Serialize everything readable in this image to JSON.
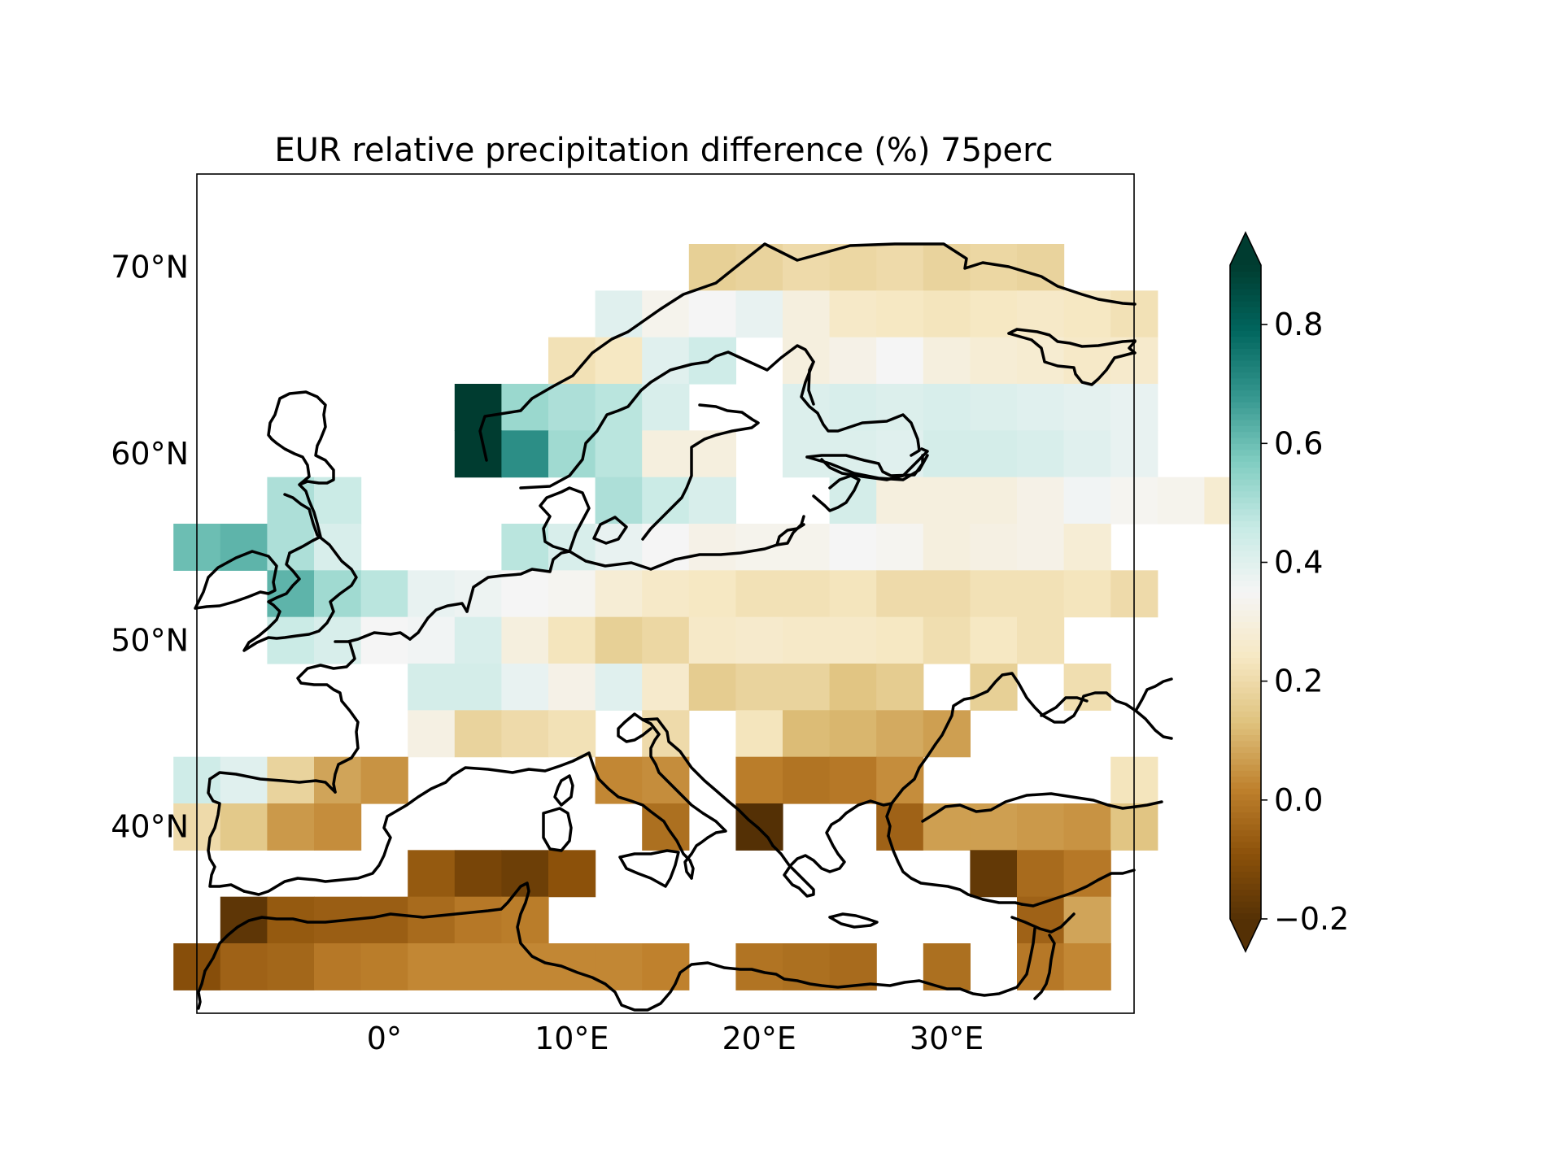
{
  "chart_data": {
    "type": "heatmap",
    "title": "EUR relative precipitation difference (%) 75perc",
    "lon_range": [
      -10,
      40
    ],
    "lat_range": [
      30,
      75
    ],
    "cell_size_deg": 2.5,
    "x_ticks": [
      {
        "value": 0,
        "label": "0°"
      },
      {
        "value": 10,
        "label": "10°E"
      },
      {
        "value": 20,
        "label": "20°E"
      },
      {
        "value": 30,
        "label": "30°E"
      }
    ],
    "y_ticks": [
      {
        "value": 40,
        "label": "40°N"
      },
      {
        "value": 50,
        "label": "50°N"
      },
      {
        "value": 60,
        "label": "60°N"
      },
      {
        "value": 70,
        "label": "70°N"
      }
    ],
    "colorbar": {
      "min": -0.2,
      "max": 0.9,
      "extend": "both",
      "ticks": [
        {
          "value": -0.2,
          "label": "−0.2"
        },
        {
          "value": 0.0,
          "label": "0.0"
        },
        {
          "value": 0.2,
          "label": "0.2"
        },
        {
          "value": 0.4,
          "label": "0.4"
        },
        {
          "value": 0.6,
          "label": "0.6"
        },
        {
          "value": 0.8,
          "label": "0.8"
        }
      ],
      "colormap": "BrBG",
      "under_color": "#543005",
      "over_color": "#003c30"
    },
    "rows": [
      {
        "lat": 70.0,
        "lon_start": 17.5,
        "values": [
          0.17,
          0.18,
          0.2,
          0.19,
          0.2,
          0.18,
          0.19,
          0.18
        ]
      },
      {
        "lat": 67.5,
        "lon_start": 12.5,
        "values": [
          0.4,
          0.33,
          0.35,
          0.38,
          0.3,
          0.25,
          0.24,
          0.23,
          0.24,
          0.25,
          0.24,
          0.22
        ]
      },
      {
        "lat": 65.0,
        "lon_start": 10.0,
        "values": [
          0.22,
          0.24,
          0.4,
          0.44,
          null,
          0.3,
          0.32,
          0.35,
          0.3,
          0.28,
          0.27,
          0.25,
          0.26
        ]
      },
      {
        "lat": 62.5,
        "lon_start": 5.0,
        "values": [
          0.9,
          0.53,
          0.5,
          0.48,
          0.42,
          null,
          null,
          0.41,
          0.42,
          0.41,
          0.42,
          0.41,
          0.4,
          0.39,
          0.38
        ]
      },
      {
        "lat": 60.0,
        "lon_start": 5.0,
        "values": [
          0.9,
          0.7,
          0.52,
          0.48,
          0.3,
          0.3,
          null,
          0.41,
          0.41,
          0.4,
          0.43,
          0.43,
          0.42,
          0.4,
          0.38
        ]
      },
      {
        "lat": 57.5,
        "lon_start": -5.0,
        "values": [
          0.5,
          0.45,
          null,
          null,
          null,
          null,
          null,
          0.5,
          0.45,
          0.42,
          null,
          null,
          0.43,
          0.3,
          0.3,
          0.3,
          0.32,
          0.36,
          0.34,
          0.33,
          0.27
        ]
      },
      {
        "lat": 55.0,
        "lon_start": -10.0,
        "values": [
          0.6,
          0.62,
          0.5,
          0.42,
          null,
          null,
          null,
          0.48,
          0.42,
          0.38,
          0.35,
          0.32,
          0.33,
          0.33,
          0.35,
          0.34,
          0.3,
          0.31,
          0.32,
          0.28
        ]
      },
      {
        "lat": 52.5,
        "lon_start": -5.0,
        "values": [
          0.62,
          0.52,
          0.48,
          0.38,
          0.37,
          0.35,
          0.34,
          0.28,
          0.25,
          0.24,
          0.22,
          0.22,
          0.23,
          0.2,
          0.2,
          0.22,
          0.22,
          0.23,
          0.2
        ]
      },
      {
        "lat": 50.0,
        "lon_start": -5.0,
        "values": [
          0.45,
          0.42,
          0.35,
          0.36,
          0.42,
          0.3,
          0.23,
          0.17,
          0.19,
          0.25,
          0.26,
          0.25,
          0.25,
          0.24,
          0.21,
          0.24,
          0.22
        ]
      },
      {
        "lat": 47.5,
        "lon_start": 2.5,
        "values": [
          0.43,
          0.43,
          0.38,
          0.32,
          0.4,
          0.26,
          0.16,
          0.18,
          0.18,
          0.14,
          0.16,
          null,
          0.17,
          null,
          0.21
        ]
      },
      {
        "lat": 45.0,
        "lon_start": 2.5,
        "values": [
          0.31,
          0.18,
          0.2,
          0.22,
          null,
          0.2,
          null,
          0.23,
          0.12,
          0.11,
          0.09,
          0.07
        ]
      },
      {
        "lat": 42.5,
        "lon_start": -10.0,
        "values": [
          0.44,
          0.4,
          0.18,
          0.08,
          0.05,
          null,
          null,
          null,
          null,
          0.03,
          0.04,
          null,
          0.01,
          -0.01,
          0.0,
          0.04,
          null,
          null,
          null,
          null,
          0.23
        ]
      },
      {
        "lat": 40.0,
        "lon_start": -10.0,
        "values": [
          0.2,
          0.15,
          0.06,
          0.04,
          null,
          null,
          null,
          null,
          null,
          null,
          -0.02,
          null,
          -0.2,
          null,
          null,
          -0.05,
          0.07,
          0.07,
          0.06,
          0.05,
          0.14
        ]
      },
      {
        "lat": 37.5,
        "lon_start": 2.5,
        "values": [
          -0.07,
          -0.13,
          -0.15,
          -0.09,
          null,
          null,
          null,
          null,
          null,
          null,
          null,
          null,
          -0.17,
          -0.03,
          0.0
        ]
      },
      {
        "lat": 35.0,
        "lon_start": -7.5,
        "values": [
          -0.18,
          -0.07,
          -0.06,
          -0.06,
          -0.03,
          0.0,
          0.01,
          null,
          null,
          null,
          null,
          null,
          null,
          null,
          null,
          null,
          null,
          -0.05,
          0.08
        ]
      },
      {
        "lat": 32.5,
        "lon_start": -10.0,
        "values": [
          -0.1,
          -0.05,
          -0.04,
          0.0,
          0.01,
          0.03,
          0.03,
          0.03,
          0.03,
          0.03,
          0.02,
          null,
          -0.01,
          -0.02,
          -0.03,
          null,
          -0.02,
          null,
          0.0,
          0.03
        ]
      }
    ]
  }
}
